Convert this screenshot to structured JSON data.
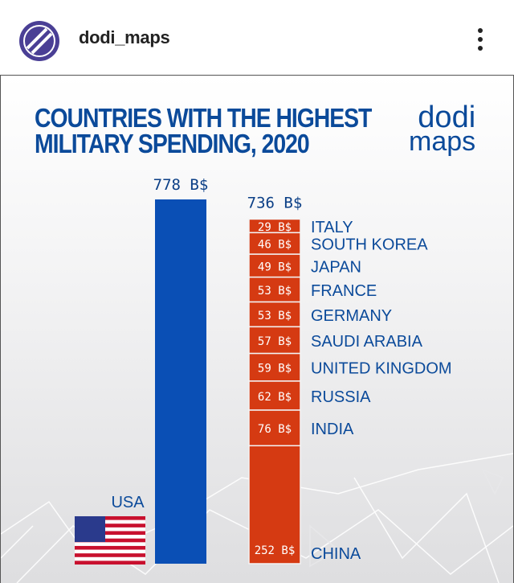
{
  "header": {
    "username": "dodi_maps",
    "avatar_icon": "striped-circle-logo-icon",
    "more_icon": "vertical-ellipsis-icon"
  },
  "post": {
    "brand_line1": "dodi",
    "brand_line2": "maps",
    "flag_icon": "us-flag-icon"
  },
  "chart_data": {
    "type": "bar",
    "title": "COUNTRIES WITH THE HIGHEST MILITARY SPENDING, 2020",
    "title_line1": "COUNTRIES WITH THE HIGHEST",
    "title_line2": "MILITARY SPENDING, 2020",
    "unit": "B$",
    "single": {
      "name": "USA",
      "value": 778,
      "label": "778 B$",
      "color": "#0a4fb5"
    },
    "stacked": {
      "total_label": "736 B$",
      "total": 736,
      "color": "#d53a12",
      "segments": [
        {
          "name": "ITALY",
          "value": 29,
          "label": "29 B$"
        },
        {
          "name": "SOUTH KOREA",
          "value": 46,
          "label": "46 B$"
        },
        {
          "name": "JAPAN",
          "value": 49,
          "label": "49 B$"
        },
        {
          "name": "FRANCE",
          "value": 53,
          "label": "53 B$"
        },
        {
          "name": "GERMANY",
          "value": 53,
          "label": "53 B$"
        },
        {
          "name": "SAUDI ARABIA",
          "value": 57,
          "label": "57 B$"
        },
        {
          "name": "UNITED KINGDOM",
          "value": 59,
          "label": "59 B$"
        },
        {
          "name": "RUSSIA",
          "value": 62,
          "label": "62 B$"
        },
        {
          "name": "INDIA",
          "value": 76,
          "label": "76 B$"
        },
        {
          "name": "CHINA",
          "value": 252,
          "label": "252 B$"
        }
      ]
    }
  }
}
